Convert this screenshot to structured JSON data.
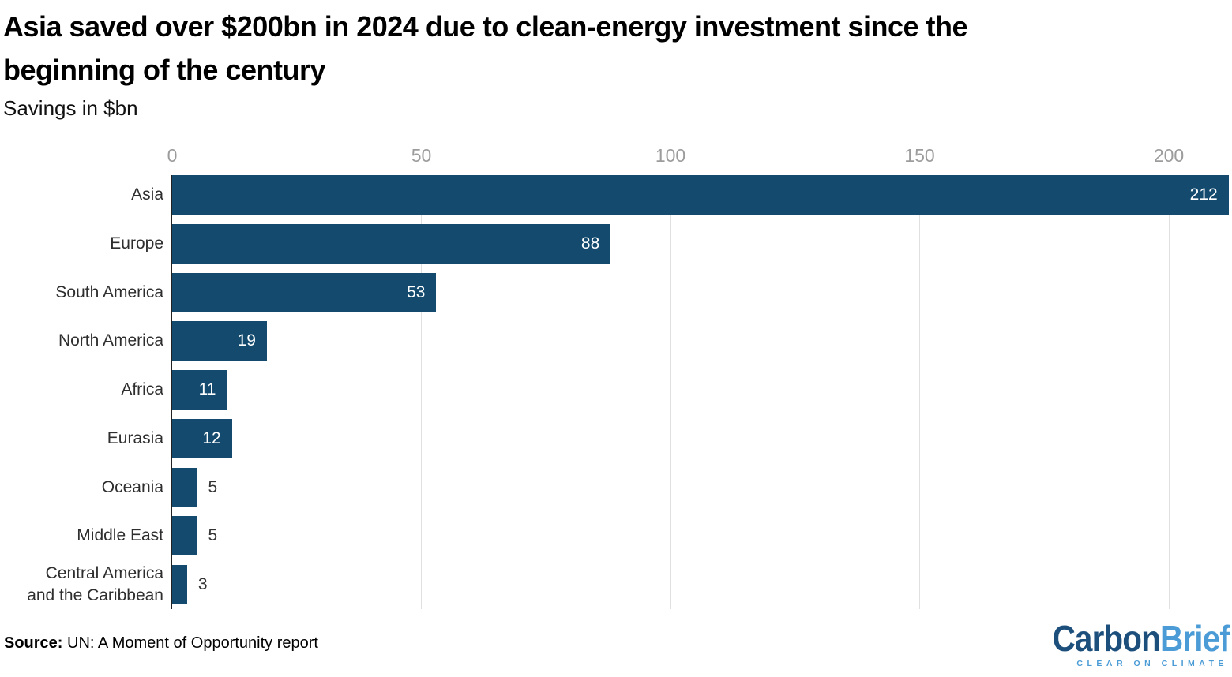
{
  "header": {
    "title_lines": [
      "Asia saved over $200bn in 2024 due to clean-energy investment since the",
      "beginning of the century"
    ],
    "subtitle": "Savings in $bn"
  },
  "chart_data": {
    "type": "bar",
    "orientation": "horizontal",
    "title": "Asia saved over $200bn in 2024 due to clean-energy investment since the beginning of the century",
    "subtitle": "Savings in $bn",
    "categories": [
      "Asia",
      "Europe",
      "South America",
      "North America",
      "Africa",
      "Eurasia",
      "Oceania",
      "Middle East",
      "Central America\nand the Caribbean"
    ],
    "values": [
      212,
      88,
      53,
      19,
      11,
      12,
      5,
      5,
      3
    ],
    "x_ticks": [
      0,
      50,
      100,
      150,
      200
    ],
    "xlim": [
      0,
      212
    ],
    "xlabel": "",
    "ylabel": "",
    "grid": "vertical-gridlines",
    "legend": "none",
    "value_labels": true
  },
  "footer": {
    "source_label": "Source:",
    "source_text": "UN: A Moment of Opportunity report"
  },
  "logo": {
    "part1": "Carbon",
    "part2": "Brief",
    "tagline": "CLEAR ON CLIMATE"
  },
  "colors": {
    "bar": "#134a6e",
    "axis_line": "#222222",
    "gridline": "#e0e0e0",
    "tick_label": "#9c9c9c",
    "category_label": "#2e2e2e",
    "value_inside": "#ffffff",
    "value_outside": "#333333",
    "logo_dark": "#1d4f7c",
    "logo_light": "#4b9cd6"
  }
}
